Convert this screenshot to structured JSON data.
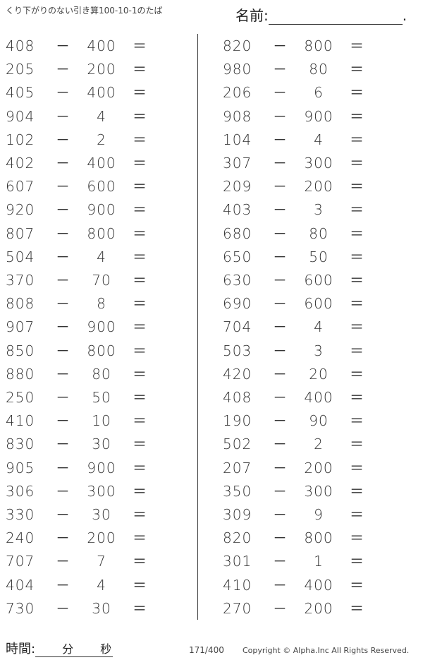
{
  "header": {
    "title": "くり下がりのない引き算100-10-1のたば",
    "name_label": "名前:",
    "name_end": "."
  },
  "operator": "－",
  "equals": "＝",
  "left_problems": [
    [
      "408",
      "400"
    ],
    [
      "205",
      "200"
    ],
    [
      "405",
      "400"
    ],
    [
      "904",
      "4"
    ],
    [
      "102",
      "2"
    ],
    [
      "402",
      "400"
    ],
    [
      "607",
      "600"
    ],
    [
      "920",
      "900"
    ],
    [
      "807",
      "800"
    ],
    [
      "504",
      "4"
    ],
    [
      "370",
      "70"
    ],
    [
      "808",
      "8"
    ],
    [
      "907",
      "900"
    ],
    [
      "850",
      "800"
    ],
    [
      "880",
      "80"
    ],
    [
      "250",
      "50"
    ],
    [
      "410",
      "10"
    ],
    [
      "830",
      "30"
    ],
    [
      "905",
      "900"
    ],
    [
      "306",
      "300"
    ],
    [
      "330",
      "30"
    ],
    [
      "240",
      "200"
    ],
    [
      "707",
      "7"
    ],
    [
      "404",
      "4"
    ],
    [
      "730",
      "30"
    ]
  ],
  "right_problems": [
    [
      "820",
      "800"
    ],
    [
      "980",
      "80"
    ],
    [
      "206",
      "6"
    ],
    [
      "908",
      "900"
    ],
    [
      "104",
      "4"
    ],
    [
      "307",
      "300"
    ],
    [
      "209",
      "200"
    ],
    [
      "403",
      "3"
    ],
    [
      "680",
      "80"
    ],
    [
      "650",
      "50"
    ],
    [
      "630",
      "600"
    ],
    [
      "690",
      "600"
    ],
    [
      "704",
      "4"
    ],
    [
      "503",
      "3"
    ],
    [
      "420",
      "20"
    ],
    [
      "408",
      "400"
    ],
    [
      "190",
      "90"
    ],
    [
      "502",
      "2"
    ],
    [
      "207",
      "200"
    ],
    [
      "350",
      "300"
    ],
    [
      "309",
      "9"
    ],
    [
      "820",
      "800"
    ],
    [
      "301",
      "1"
    ],
    [
      "410",
      "400"
    ],
    [
      "270",
      "200"
    ]
  ],
  "footer": {
    "time_label": "時間:",
    "minutes": "分",
    "seconds": "秒",
    "page": "171/400",
    "copyright": "Copyright ©  Alpha.Inc All Rights Reserved."
  }
}
